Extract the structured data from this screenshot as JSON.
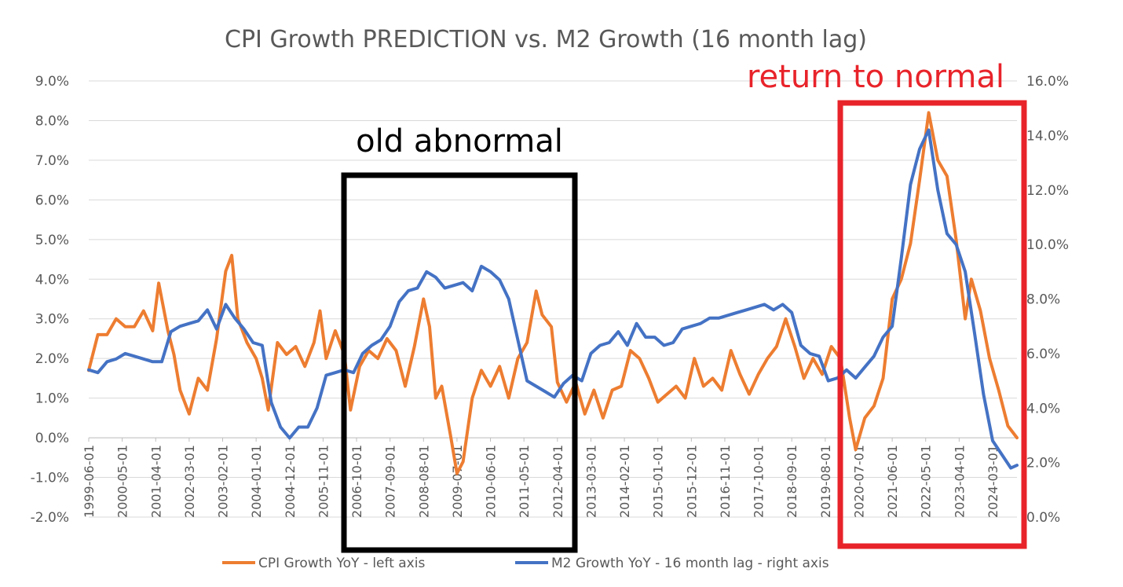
{
  "chart_data": {
    "type": "line",
    "title": "CPI Growth PREDICTION vs. M2 Growth (16 month lag)",
    "y_left": {
      "min": -2,
      "max": 9,
      "step": 1,
      "tick_labels": [
        "-2.0%",
        "-1.0%",
        "0.0%",
        "1.0%",
        "2.0%",
        "3.0%",
        "4.0%",
        "5.0%",
        "6.0%",
        "7.0%",
        "8.0%",
        "9.0%"
      ]
    },
    "y_right": {
      "min": 0,
      "max": 16,
      "step": 2,
      "tick_labels": [
        "0.0%",
        "2.0%",
        "4.0%",
        "6.0%",
        "8.0%",
        "10.0%",
        "12.0%",
        "14.0%",
        "16.0%"
      ]
    },
    "x_range": [
      "1999-06-01",
      "2024-11-01"
    ],
    "x_tick_labels": [
      "1999-06-01",
      "2000-05-01",
      "2001-04-01",
      "2002-03-01",
      "2003-02-01",
      "2004-01-01",
      "2004-12-01",
      "2005-11-01",
      "2006-10-01",
      "2007-09-01",
      "2008-08-01",
      "2009-07-01",
      "2010-06-01",
      "2011-05-01",
      "2012-04-01",
      "2013-03-01",
      "2014-02-01",
      "2015-01-01",
      "2015-12-01",
      "2016-11-01",
      "2017-10-01",
      "2018-09-01",
      "2019-08-01",
      "2020-07-01",
      "2021-06-01",
      "2022-05-01",
      "2023-04-01",
      "2024-03-01"
    ],
    "grid": true,
    "legend_position": "bottom",
    "series": [
      {
        "name": "CPI Growth YoY - left axis",
        "axis": "left",
        "color": "#ED7D31",
        "points": [
          [
            "1999-06",
            1.7
          ],
          [
            "1999-09",
            2.6
          ],
          [
            "1999-12",
            2.6
          ],
          [
            "2000-03",
            3.0
          ],
          [
            "2000-06",
            2.8
          ],
          [
            "2000-09",
            2.8
          ],
          [
            "2000-12",
            3.2
          ],
          [
            "2001-03",
            2.7
          ],
          [
            "2001-05",
            3.9
          ],
          [
            "2001-08",
            2.7
          ],
          [
            "2001-10",
            2.1
          ],
          [
            "2001-12",
            1.2
          ],
          [
            "2002-03",
            0.6
          ],
          [
            "2002-06",
            1.5
          ],
          [
            "2002-09",
            1.2
          ],
          [
            "2002-12",
            2.5
          ],
          [
            "2003-03",
            4.2
          ],
          [
            "2003-05",
            4.6
          ],
          [
            "2003-07",
            3.0
          ],
          [
            "2003-10",
            2.4
          ],
          [
            "2004-01",
            2.0
          ],
          [
            "2004-03",
            1.5
          ],
          [
            "2004-05",
            0.7
          ],
          [
            "2004-08",
            2.4
          ],
          [
            "2004-11",
            2.1
          ],
          [
            "2005-02",
            2.3
          ],
          [
            "2005-05",
            1.8
          ],
          [
            "2005-08",
            2.4
          ],
          [
            "2005-10",
            3.2
          ],
          [
            "2005-12",
            2.0
          ],
          [
            "2006-03",
            2.7
          ],
          [
            "2006-06",
            2.1
          ],
          [
            "2006-08",
            0.7
          ],
          [
            "2006-11",
            1.8
          ],
          [
            "2007-02",
            2.2
          ],
          [
            "2007-05",
            2.0
          ],
          [
            "2007-08",
            2.5
          ],
          [
            "2007-11",
            2.2
          ],
          [
            "2008-02",
            1.3
          ],
          [
            "2008-05",
            2.3
          ],
          [
            "2008-08",
            3.5
          ],
          [
            "2008-10",
            2.8
          ],
          [
            "2008-12",
            1.0
          ],
          [
            "2009-02",
            1.3
          ],
          [
            "2009-05",
            0.0
          ],
          [
            "2009-07",
            -0.9
          ],
          [
            "2009-09",
            -0.6
          ],
          [
            "2009-12",
            1.0
          ],
          [
            "2010-03",
            1.7
          ],
          [
            "2010-06",
            1.3
          ],
          [
            "2010-09",
            1.8
          ],
          [
            "2010-12",
            1.0
          ],
          [
            "2011-03",
            2.0
          ],
          [
            "2011-06",
            2.4
          ],
          [
            "2011-09",
            3.7
          ],
          [
            "2011-11",
            3.1
          ],
          [
            "2012-02",
            2.8
          ],
          [
            "2012-04",
            1.4
          ],
          [
            "2012-07",
            0.9
          ],
          [
            "2012-10",
            1.4
          ],
          [
            "2013-01",
            0.6
          ],
          [
            "2013-04",
            1.2
          ],
          [
            "2013-07",
            0.5
          ],
          [
            "2013-10",
            1.2
          ],
          [
            "2014-01",
            1.3
          ],
          [
            "2014-04",
            2.2
          ],
          [
            "2014-07",
            2.0
          ],
          [
            "2014-10",
            1.5
          ],
          [
            "2015-01",
            0.9
          ],
          [
            "2015-04",
            1.1
          ],
          [
            "2015-07",
            1.3
          ],
          [
            "2015-10",
            1.0
          ],
          [
            "2016-01",
            2.0
          ],
          [
            "2016-04",
            1.3
          ],
          [
            "2016-07",
            1.5
          ],
          [
            "2016-10",
            1.2
          ],
          [
            "2017-01",
            2.2
          ],
          [
            "2017-04",
            1.6
          ],
          [
            "2017-07",
            1.1
          ],
          [
            "2017-10",
            1.6
          ],
          [
            "2018-01",
            2.0
          ],
          [
            "2018-04",
            2.3
          ],
          [
            "2018-07",
            3.0
          ],
          [
            "2018-10",
            2.3
          ],
          [
            "2019-01",
            1.5
          ],
          [
            "2019-04",
            2.0
          ],
          [
            "2019-07",
            1.6
          ],
          [
            "2019-10",
            2.3
          ],
          [
            "2020-01",
            2.0
          ],
          [
            "2020-04",
            0.5
          ],
          [
            "2020-06",
            -0.3
          ],
          [
            "2020-09",
            0.5
          ],
          [
            "2020-12",
            0.8
          ],
          [
            "2021-03",
            1.5
          ],
          [
            "2021-06",
            3.5
          ],
          [
            "2021-09",
            4.0
          ],
          [
            "2021-12",
            4.9
          ],
          [
            "2022-03",
            6.5
          ],
          [
            "2022-06",
            8.2
          ],
          [
            "2022-09",
            7.0
          ],
          [
            "2022-12",
            6.6
          ],
          [
            "2023-03",
            5.0
          ],
          [
            "2023-06",
            3.0
          ],
          [
            "2023-08",
            4.0
          ],
          [
            "2023-11",
            3.2
          ],
          [
            "2024-02",
            2.0
          ],
          [
            "2024-05",
            1.2
          ],
          [
            "2024-08",
            0.3
          ],
          [
            "2024-11",
            0.0
          ]
        ]
      },
      {
        "name": "M2 Growth YoY - 16 month lag - right axis",
        "axis": "right",
        "color": "#4472C4",
        "points": [
          [
            "1999-06",
            5.4
          ],
          [
            "1999-09",
            5.3
          ],
          [
            "1999-12",
            5.7
          ],
          [
            "2000-03",
            5.8
          ],
          [
            "2000-06",
            6.0
          ],
          [
            "2000-09",
            5.9
          ],
          [
            "2000-12",
            5.8
          ],
          [
            "2001-03",
            5.7
          ],
          [
            "2001-06",
            5.7
          ],
          [
            "2001-09",
            6.8
          ],
          [
            "2001-12",
            7.0
          ],
          [
            "2002-03",
            7.1
          ],
          [
            "2002-06",
            7.2
          ],
          [
            "2002-09",
            7.6
          ],
          [
            "2002-12",
            6.9
          ],
          [
            "2003-03",
            7.8
          ],
          [
            "2003-06",
            7.3
          ],
          [
            "2003-09",
            6.9
          ],
          [
            "2003-12",
            6.4
          ],
          [
            "2004-03",
            6.3
          ],
          [
            "2004-06",
            4.2
          ],
          [
            "2004-09",
            3.3
          ],
          [
            "2004-12",
            2.9
          ],
          [
            "2005-03",
            3.3
          ],
          [
            "2005-06",
            3.3
          ],
          [
            "2005-09",
            4.0
          ],
          [
            "2005-12",
            5.2
          ],
          [
            "2006-03",
            5.3
          ],
          [
            "2006-06",
            5.4
          ],
          [
            "2006-09",
            5.3
          ],
          [
            "2006-12",
            6.0
          ],
          [
            "2007-03",
            6.3
          ],
          [
            "2007-06",
            6.5
          ],
          [
            "2007-09",
            7.0
          ],
          [
            "2007-12",
            7.9
          ],
          [
            "2008-03",
            8.3
          ],
          [
            "2008-06",
            8.4
          ],
          [
            "2008-09",
            9.0
          ],
          [
            "2008-12",
            8.8
          ],
          [
            "2009-03",
            8.4
          ],
          [
            "2009-06",
            8.5
          ],
          [
            "2009-09",
            8.6
          ],
          [
            "2009-12",
            8.3
          ],
          [
            "2010-03",
            9.2
          ],
          [
            "2010-06",
            9.0
          ],
          [
            "2010-09",
            8.7
          ],
          [
            "2010-12",
            8.0
          ],
          [
            "2011-03",
            6.5
          ],
          [
            "2011-06",
            5.0
          ],
          [
            "2011-09",
            4.8
          ],
          [
            "2011-12",
            4.6
          ],
          [
            "2012-03",
            4.4
          ],
          [
            "2012-06",
            4.9
          ],
          [
            "2012-09",
            5.2
          ],
          [
            "2012-12",
            5.0
          ],
          [
            "2013-03",
            6.0
          ],
          [
            "2013-06",
            6.3
          ],
          [
            "2013-09",
            6.4
          ],
          [
            "2013-12",
            6.8
          ],
          [
            "2014-03",
            6.3
          ],
          [
            "2014-06",
            7.1
          ],
          [
            "2014-09",
            6.6
          ],
          [
            "2014-12",
            6.6
          ],
          [
            "2015-03",
            6.3
          ],
          [
            "2015-06",
            6.4
          ],
          [
            "2015-09",
            6.9
          ],
          [
            "2015-12",
            7.0
          ],
          [
            "2016-03",
            7.1
          ],
          [
            "2016-06",
            7.3
          ],
          [
            "2016-09",
            7.3
          ],
          [
            "2016-12",
            7.4
          ],
          [
            "2017-03",
            7.5
          ],
          [
            "2017-06",
            7.6
          ],
          [
            "2017-09",
            7.7
          ],
          [
            "2017-12",
            7.8
          ],
          [
            "2018-03",
            7.6
          ],
          [
            "2018-06",
            7.8
          ],
          [
            "2018-09",
            7.5
          ],
          [
            "2018-12",
            6.3
          ],
          [
            "2019-03",
            6.0
          ],
          [
            "2019-06",
            5.9
          ],
          [
            "2019-09",
            5.0
          ],
          [
            "2019-12",
            5.1
          ],
          [
            "2020-03",
            5.4
          ],
          [
            "2020-06",
            5.1
          ],
          [
            "2020-09",
            5.5
          ],
          [
            "2020-12",
            5.9
          ],
          [
            "2021-03",
            6.6
          ],
          [
            "2021-06",
            7.0
          ],
          [
            "2021-09",
            9.5
          ],
          [
            "2021-12",
            12.2
          ],
          [
            "2022-03",
            13.5
          ],
          [
            "2022-06",
            14.2
          ],
          [
            "2022-09",
            12.0
          ],
          [
            "2022-12",
            10.4
          ],
          [
            "2023-03",
            10.0
          ],
          [
            "2023-06",
            9.0
          ],
          [
            "2023-09",
            6.8
          ],
          [
            "2023-12",
            4.5
          ],
          [
            "2024-03",
            2.8
          ],
          [
            "2024-06",
            2.3
          ],
          [
            "2024-09",
            1.8
          ],
          [
            "2024-11",
            1.9
          ]
        ]
      }
    ]
  },
  "annotations": [
    {
      "text": "old abnormal",
      "color": "#000000"
    },
    {
      "text": "return to normal",
      "color": "#E8232A"
    }
  ],
  "colors": {
    "cpi": "#ED7D31",
    "m2": "#4472C4",
    "grid": "#D9D9D9",
    "text": "#595959",
    "box_black": "#000000",
    "box_red": "#E8232A"
  }
}
